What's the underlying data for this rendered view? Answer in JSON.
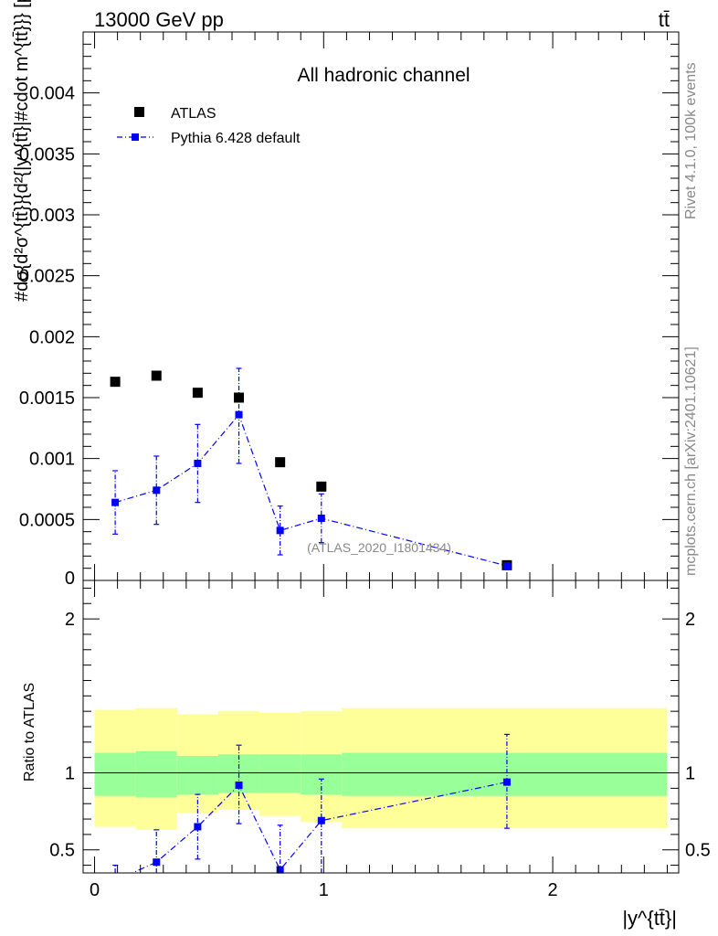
{
  "header": {
    "energy_label": "13000 GeV pp",
    "process_label": "tt̄"
  },
  "side_text": {
    "rivet_label": "Rivet 4.1.0,  100k events",
    "site_label": "mcplots.cern.ch [arXiv:2401.10621]"
  },
  "chart_data": [
    {
      "panel": "main",
      "type": "scatter",
      "title": "All hadronic channel",
      "analysis_label": "(ATLAS_2020_I1801434)",
      "ylabel": "#dσ{d²σ^{tt̄}}{d²{|y^{tt̄}|#cdot m^{tt̄}}} [pb/GeV]",
      "xlim": [
        -0.05,
        2.55
      ],
      "ylim": [
        0,
        0.0045
      ],
      "yticks": [
        {
          "value": 0.0005,
          "label": "0.0005"
        },
        {
          "value": 0.001,
          "label": "0.001"
        },
        {
          "value": 0.0015,
          "label": "0.0015"
        },
        {
          "value": 0.002,
          "label": "0.002"
        },
        {
          "value": 0.0025,
          "label": "0.0025"
        },
        {
          "value": 0.003,
          "label": "0.003"
        },
        {
          "value": 0.0035,
          "label": "0.0035"
        },
        {
          "value": 0.004,
          "label": "0.004"
        }
      ],
      "y_zero_label": "0",
      "series": [
        {
          "name": "ATLAS",
          "color": "#000000",
          "x": [
            0.09,
            0.27,
            0.45,
            0.63,
            0.81,
            0.99,
            1.8
          ],
          "values": [
            0.00163,
            0.00168,
            0.00154,
            0.0015,
            0.00097,
            0.00077,
            0.000125
          ]
        },
        {
          "name": "Pythia 6.428 default",
          "color": "#0000ff",
          "x": [
            0.09,
            0.27,
            0.45,
            0.63,
            0.81,
            0.99,
            1.8
          ],
          "values": [
            0.00064,
            0.00074,
            0.00096,
            0.00136,
            0.00041,
            0.00051,
            0.00012
          ],
          "err_low": [
            0.00026,
            0.00028,
            0.00032,
            0.0004,
            0.0002,
            0.0002,
            2e-05
          ],
          "err_high": [
            0.00026,
            0.00028,
            0.00032,
            0.00038,
            0.0002,
            0.0002,
            2e-05
          ]
        }
      ]
    },
    {
      "panel": "ratio",
      "type": "scatter",
      "ylabel": "Ratio to ATLAS",
      "xlabel": "|y^{tt̄}|",
      "xlim": [
        -0.05,
        2.55
      ],
      "ylim": [
        0.35,
        2.25
      ],
      "xticks": [
        {
          "value": 0,
          "label": "0"
        },
        {
          "value": 1,
          "label": "1"
        },
        {
          "value": 2,
          "label": "2"
        }
      ],
      "yticks": [
        {
          "value": 0.5,
          "label": "0.5"
        },
        {
          "value": 1,
          "label": "1"
        },
        {
          "value": 2,
          "label": "2"
        }
      ],
      "bins": [
        0,
        0.18,
        0.36,
        0.54,
        0.72,
        0.9,
        1.08,
        2.5
      ],
      "band_inner": {
        "color": "#99ff99",
        "low": [
          0.85,
          0.84,
          0.86,
          0.87,
          0.87,
          0.86,
          0.85
        ],
        "high": [
          1.13,
          1.14,
          1.11,
          1.12,
          1.12,
          1.12,
          1.13
        ]
      },
      "band_outer": {
        "color": "#ffff99",
        "low": [
          0.65,
          0.63,
          0.74,
          0.76,
          0.72,
          0.68,
          0.64
        ],
        "high": [
          1.41,
          1.42,
          1.38,
          1.4,
          1.39,
          1.4,
          1.42
        ]
      },
      "series": [
        {
          "name": "Pythia 6.428 default",
          "color": "#0000ff",
          "x": [
            0.09,
            0.27,
            0.45,
            0.63,
            0.81,
            0.99,
            1.8
          ],
          "values": [
            0.3,
            0.42,
            0.65,
            0.92,
            0.37,
            0.69,
            0.94
          ],
          "err_low": [
            0.1,
            0.1,
            0.21,
            0.25,
            0.1,
            0.35,
            0.3
          ],
          "err_high": [
            0.1,
            0.21,
            0.21,
            0.26,
            0.29,
            0.27,
            0.31
          ]
        }
      ]
    }
  ]
}
